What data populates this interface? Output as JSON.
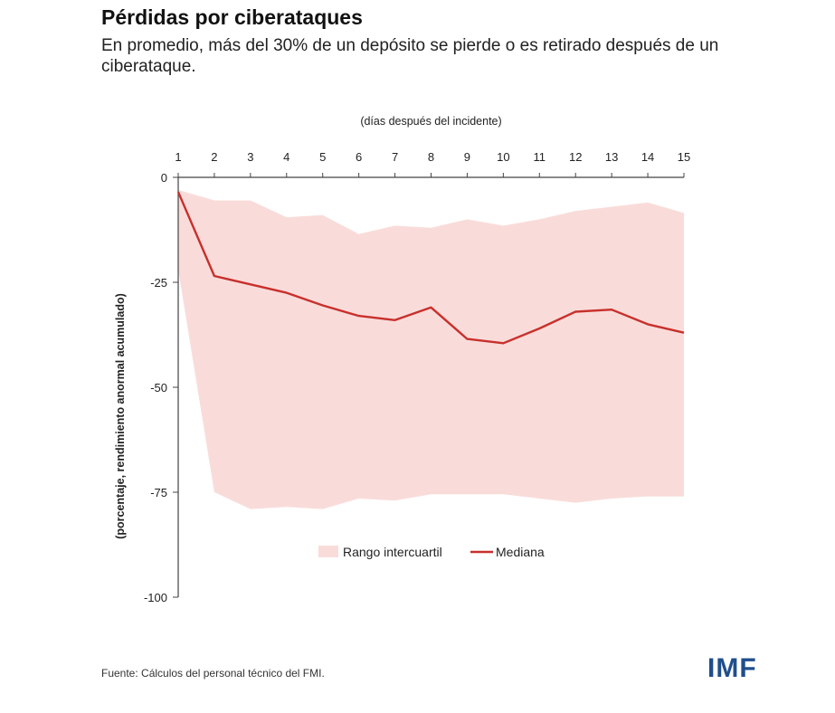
{
  "header": {
    "title": "Pérdidas por ciberataques",
    "subtitle": "En promedio, más del 30% de un depósito se pierde o es retirado después de un ciberataque."
  },
  "footer": {
    "source": "Fuente: Cálculos del personal técnico del FMI.",
    "logo": "IMF"
  },
  "colors": {
    "median": "#c8302c",
    "band": "#f9dcda",
    "axis": "#444444",
    "logo": "#1f4e8c"
  },
  "chart_data": {
    "type": "area",
    "title": "Pérdidas por ciberataques",
    "xlabel": "(días después del incidente)",
    "ylabel": "(porcentaje, rendimiento anormal acumulado)",
    "x": [
      1,
      2,
      3,
      4,
      5,
      6,
      7,
      8,
      9,
      10,
      11,
      12,
      13,
      14,
      15
    ],
    "x_tick_labels": [
      "1",
      "2",
      "3",
      "4",
      "5",
      "6",
      "7",
      "8",
      "9",
      "10",
      "11",
      "12",
      "13",
      "14",
      "15"
    ],
    "xlim": [
      1,
      15
    ],
    "ylim": [
      -100,
      0
    ],
    "y_ticks": [
      0,
      -25,
      -50,
      -75,
      -100
    ],
    "y_tick_labels": [
      "0",
      "-25",
      "-50",
      "-75",
      "-100"
    ],
    "x_axis_position": "top",
    "grid": false,
    "legend_position": "bottom-center",
    "series": [
      {
        "name": "Rango intercuartil",
        "kind": "band",
        "upper": [
          -3,
          -5.5,
          -5.5,
          -9.5,
          -9,
          -13.5,
          -11.5,
          -12,
          -10,
          -11.5,
          -10,
          -8,
          -7,
          -6,
          -8.5
        ],
        "lower": [
          -22,
          -75,
          -79,
          -78.5,
          -79,
          -76.5,
          -77,
          -75.5,
          -75.5,
          -75.5,
          -76.5,
          -77.5,
          -76.5,
          -76,
          -76
        ]
      },
      {
        "name": "Mediana",
        "kind": "line",
        "values": [
          -3.5,
          -23.5,
          -25.5,
          -27.5,
          -30.5,
          -33,
          -34,
          -31,
          -38.5,
          -39.5,
          -36,
          -32,
          -31.5,
          -35,
          -37
        ]
      }
    ]
  }
}
